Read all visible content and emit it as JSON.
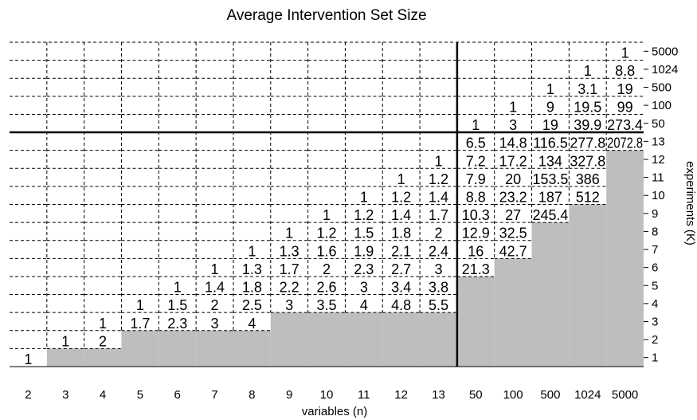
{
  "chart_data": {
    "type": "table",
    "title": "Average Intervention Set Size",
    "xlabel": "variables (n)",
    "ylabel": "experiments (K)",
    "x_ticks": [
      "2",
      "3",
      "4",
      "5",
      "6",
      "7",
      "8",
      "9",
      "10",
      "11",
      "12",
      "13",
      "50",
      "100",
      "500",
      "1024",
      "5000"
    ],
    "y_ticks": [
      "1",
      "2",
      "3",
      "4",
      "5",
      "6",
      "7",
      "8",
      "9",
      "10",
      "11",
      "12",
      "13",
      "50",
      "100",
      "500",
      "1024",
      "5000"
    ],
    "fill_color": "#bebebe",
    "columns": [
      {
        "n": "2",
        "values": [
          "1"
        ],
        "shaded_up_to": 0
      },
      {
        "n": "3",
        "values": [
          "",
          "1"
        ],
        "shaded_up_to": 1
      },
      {
        "n": "4",
        "values": [
          "",
          "2",
          "1"
        ],
        "shaded_up_to": 1
      },
      {
        "n": "5",
        "values": [
          "",
          "",
          "1.7",
          "1"
        ],
        "shaded_up_to": 2
      },
      {
        "n": "6",
        "values": [
          "",
          "",
          "2.3",
          "1.5",
          "1"
        ],
        "shaded_up_to": 2
      },
      {
        "n": "7",
        "values": [
          "",
          "",
          "3",
          "2",
          "1.4",
          "1"
        ],
        "shaded_up_to": 2
      },
      {
        "n": "8",
        "values": [
          "",
          "",
          "4",
          "2.5",
          "1.8",
          "1.3",
          "1"
        ],
        "shaded_up_to": 2
      },
      {
        "n": "9",
        "values": [
          "",
          "",
          "",
          "3",
          "2.2",
          "1.7",
          "1.3",
          "1"
        ],
        "shaded_up_to": 3
      },
      {
        "n": "10",
        "values": [
          "",
          "",
          "",
          "3.5",
          "2.6",
          "2",
          "1.6",
          "1.2",
          "1"
        ],
        "shaded_up_to": 3
      },
      {
        "n": "11",
        "values": [
          "",
          "",
          "",
          "4",
          "3",
          "2.3",
          "1.9",
          "1.5",
          "1.2",
          "1"
        ],
        "shaded_up_to": 3
      },
      {
        "n": "12",
        "values": [
          "",
          "",
          "",
          "4.8",
          "3.4",
          "2.7",
          "2.1",
          "1.8",
          "1.4",
          "1.2",
          "1"
        ],
        "shaded_up_to": 3
      },
      {
        "n": "13",
        "values": [
          "",
          "",
          "",
          "5.5",
          "3.8",
          "3",
          "2.4",
          "2",
          "1.7",
          "1.4",
          "1.2",
          "1"
        ],
        "shaded_up_to": 3
      },
      {
        "n": "50",
        "values": [
          "",
          "",
          "",
          "",
          "",
          "21.3",
          "16",
          "12.9",
          "10.3",
          "8.8",
          "7.9",
          "7.2",
          "6.5",
          "1"
        ],
        "shaded_up_to": 5
      },
      {
        "n": "100",
        "values": [
          "",
          "",
          "",
          "",
          "",
          "",
          "42.7",
          "32.5",
          "27",
          "23.2",
          "20",
          "17.2",
          "14.8",
          "3",
          "1"
        ],
        "shaded_up_to": 6
      },
      {
        "n": "500",
        "values": [
          "",
          "",
          "",
          "",
          "",
          "",
          "",
          "",
          "245.4",
          "187",
          "153.5",
          "134",
          "116.5",
          "19",
          "9",
          "1"
        ],
        "shaded_up_to": 8
      },
      {
        "n": "1024",
        "values": [
          "",
          "",
          "",
          "",
          "",
          "",
          "",
          "",
          "",
          "512",
          "386",
          "327.8",
          "277.8",
          "39.9",
          "19.5",
          "3.1",
          "1"
        ],
        "shaded_up_to": 9
      },
      {
        "n": "5000",
        "values": [
          "",
          "",
          "",
          "",
          "",
          "",
          "",
          "",
          "",
          "",
          "",
          "",
          "2072.8",
          "273.4",
          "99",
          "19",
          "8.8",
          "1"
        ],
        "shaded_up_to": 12
      }
    ]
  }
}
